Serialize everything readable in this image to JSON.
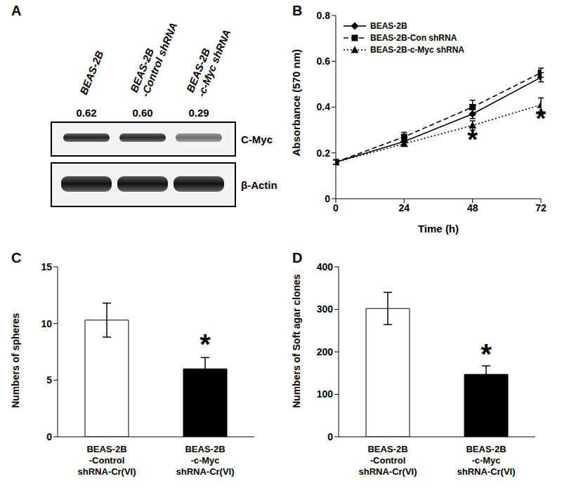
{
  "chart_data": [
    {
      "type": "blot",
      "panel": "A",
      "categories": [
        "BEAS-2B",
        "BEAS-2B -Control shRNA",
        "BEAS-2B -c-Myc shRNA"
      ],
      "values": [
        0.62,
        0.6,
        0.29
      ],
      "value_labels": [
        "0.62",
        "0.60",
        "0.29"
      ],
      "rows": [
        "C-Myc",
        "β-Actin"
      ]
    },
    {
      "type": "line",
      "panel": "B",
      "x_label": "Time (h)",
      "y_label": "Absorbance (570 nm)",
      "x": [
        0,
        24,
        48,
        72
      ],
      "xlim": [
        0,
        72
      ],
      "xticks": [
        0,
        24,
        48,
        72
      ],
      "ylim": [
        0,
        0.8
      ],
      "yticks": [
        0,
        0.2,
        0.4,
        0.6,
        0.8
      ],
      "legend": "upper left",
      "series": [
        {
          "name": "BEAS-2B",
          "color": "#000000",
          "marker": "diamond",
          "line_style": "solid",
          "values": [
            0.16,
            0.25,
            0.37,
            0.53
          ],
          "error": [
            0.01,
            0.02,
            0.02,
            0.02
          ]
        },
        {
          "name": "BEAS-2B-Con shRNA",
          "color": "#000000",
          "marker": "square",
          "line_style": "dashed",
          "values": [
            0.16,
            0.27,
            0.4,
            0.55
          ],
          "error": [
            0.01,
            0.02,
            0.03,
            0.02
          ]
        },
        {
          "name": "BEAS-2B-c-Myc shRNA",
          "color": "#000000",
          "marker": "triangle",
          "line_style": "dotted",
          "values": [
            0.16,
            0.24,
            0.32,
            0.41
          ],
          "error": [
            0.01,
            0.01,
            0.02,
            0.03
          ]
        }
      ],
      "annotations": [
        {
          "text": "*",
          "x": 48,
          "y": 0.26
        },
        {
          "text": "*",
          "x": 72,
          "y": 0.35
        }
      ]
    },
    {
      "type": "bar",
      "panel": "C",
      "y_label": "Numbers of spheres",
      "categories": [
        "BEAS-2B -Control shRNA-Cr(VI)",
        "BEAS-2B -c-Myc shRNA-Cr(VI)"
      ],
      "values": [
        10.3,
        6.0
      ],
      "error": [
        1.5,
        1.0
      ],
      "colors": [
        "#ffffff",
        "#000000"
      ],
      "ylim": [
        0,
        15
      ],
      "yticks": [
        0,
        5,
        10,
        15
      ],
      "annotations": [
        {
          "text": "*",
          "category": "BEAS-2B -c-Myc shRNA-Cr(VI)",
          "y": 8.2
        }
      ]
    },
    {
      "type": "bar",
      "panel": "D",
      "y_label": "Numbers of Soft agar clones",
      "categories": [
        "BEAS-2B -Control shRNA-Cr(VI)",
        "BEAS-2B -c-Myc shRNA-Cr(VI)"
      ],
      "values": [
        302,
        147
      ],
      "error": [
        38,
        20
      ],
      "colors": [
        "#ffffff",
        "#000000"
      ],
      "ylim": [
        0,
        400
      ],
      "yticks": [
        0,
        100,
        200,
        300,
        400
      ],
      "annotations": [
        {
          "text": "*",
          "category": "BEAS-2B -c-Myc shRNA-Cr(VI)",
          "y": 195
        }
      ]
    }
  ]
}
